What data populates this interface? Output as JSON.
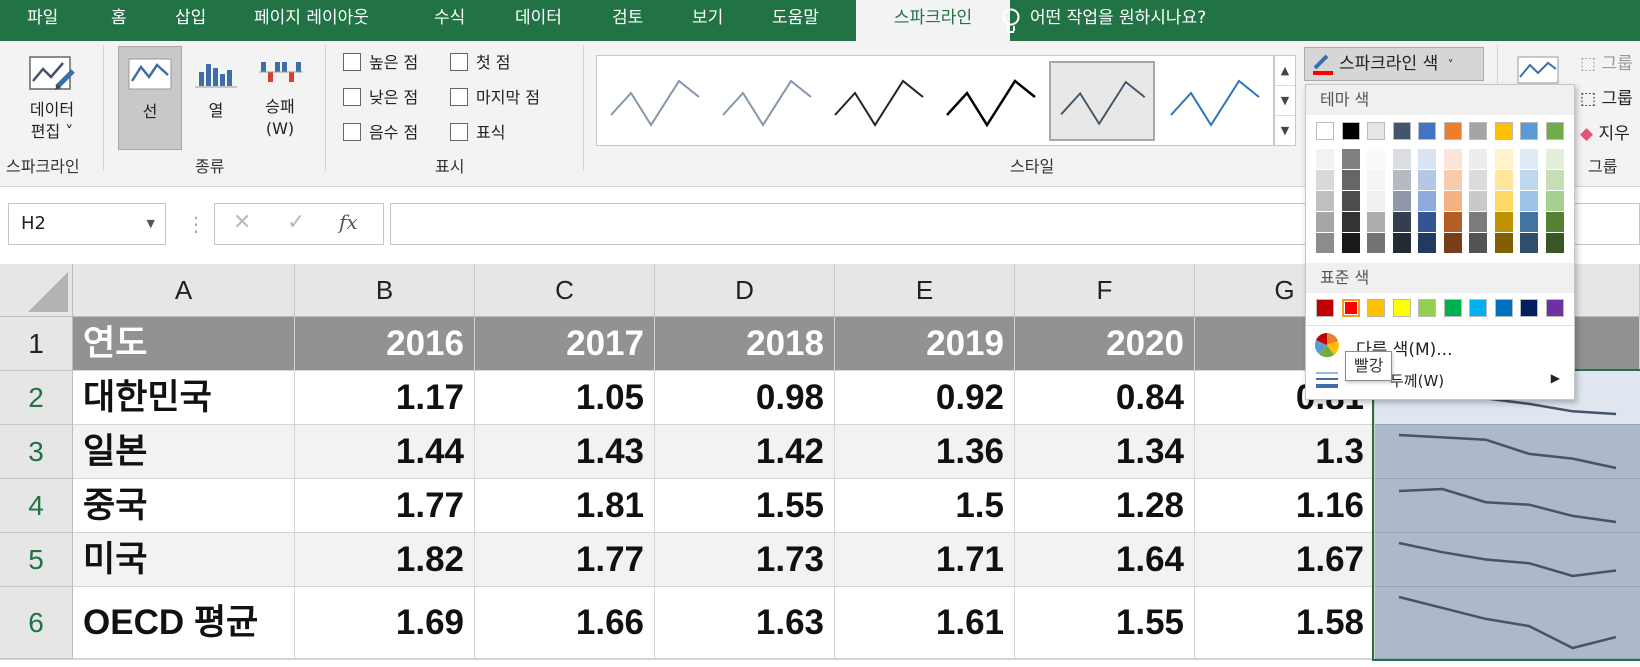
{
  "ribbon_tabs": [
    {
      "label": "파일"
    },
    {
      "label": "홈"
    },
    {
      "label": "삽입"
    },
    {
      "label": "페이지 레이아웃"
    },
    {
      "label": "수식"
    },
    {
      "label": "데이터"
    },
    {
      "label": "검토"
    },
    {
      "label": "보기"
    },
    {
      "label": "도움말"
    },
    {
      "label": "스파크라인"
    }
  ],
  "active_tab": "스파크라인",
  "tell_me": "어떤 작업을 원하시나요?",
  "ribbon": {
    "edit_data_line1": "데이터",
    "edit_data_line2": "편집",
    "group_sparkline": "스파크라인",
    "type_line": "선",
    "type_column": "열",
    "type_winloss_line1": "승패",
    "type_winloss_line2": "(W)",
    "group_type": "종류",
    "show_high": "높은 점",
    "show_low": "낮은 점",
    "show_negative": "음수 점",
    "show_first": "첫 점",
    "show_last": "마지막 점",
    "show_markers": "표식",
    "group_show": "표시",
    "group_style": "스타일",
    "sparkline_color": "스파크라인 색",
    "group_group_partial": "그룹",
    "group1_partial": "그룹",
    "group2_partial": "그룹",
    "clear_partial": "지우"
  },
  "formula_bar": {
    "name_box": "H2",
    "fx": "fx",
    "formula": ""
  },
  "columns": [
    "A",
    "B",
    "C",
    "D",
    "E",
    "F",
    "G"
  ],
  "rows": [
    "1",
    "2",
    "3",
    "4",
    "5",
    "6"
  ],
  "table": {
    "header": [
      "연도",
      "2016",
      "2017",
      "2018",
      "2019",
      "2020",
      "2"
    ],
    "data": [
      [
        "대한민국",
        "1.17",
        "1.05",
        "0.98",
        "0.92",
        "0.84",
        "0.81"
      ],
      [
        "일본",
        "1.44",
        "1.43",
        "1.42",
        "1.36",
        "1.34",
        "1.3"
      ],
      [
        "중국",
        "1.77",
        "1.81",
        "1.55",
        "1.5",
        "1.28",
        "1.16"
      ],
      [
        "미국",
        "1.82",
        "1.77",
        "1.73",
        "1.71",
        "1.64",
        "1.67"
      ],
      [
        "OECD 평균",
        "1.69",
        "1.66",
        "1.63",
        "1.61",
        "1.55",
        "1.58"
      ]
    ]
  },
  "sparkline_values": [
    [
      1.17,
      1.05,
      0.98,
      0.92,
      0.84,
      0.81
    ],
    [
      1.44,
      1.43,
      1.42,
      1.36,
      1.34,
      1.3
    ],
    [
      1.77,
      1.81,
      1.55,
      1.5,
      1.28,
      1.16
    ],
    [
      1.82,
      1.77,
      1.73,
      1.71,
      1.64,
      1.67
    ],
    [
      1.69,
      1.66,
      1.63,
      1.61,
      1.55,
      1.58
    ]
  ],
  "color_menu": {
    "theme_colors_label": "테마 색",
    "standard_colors_label": "표준 색",
    "more_colors": "다른 색(M)...",
    "weight": "두께(W)",
    "tooltip": "빨강",
    "theme_top": [
      "#ffffff",
      "#000000",
      "#e7e6e6",
      "#44546a",
      "#4472c4",
      "#ed7d31",
      "#a5a5a5",
      "#ffc000",
      "#5b9bd5",
      "#70ad47"
    ],
    "standard": [
      "#c00000",
      "#ff0000",
      "#ffc000",
      "#ffff00",
      "#92d050",
      "#00b050",
      "#00b0f0",
      "#0070c0",
      "#002060",
      "#7030a0"
    ]
  },
  "colors": {
    "accent": "#217346",
    "sparkline_line": "#44546a",
    "sparkline_cell": "#adb9ca",
    "header_fill": "#929292"
  }
}
